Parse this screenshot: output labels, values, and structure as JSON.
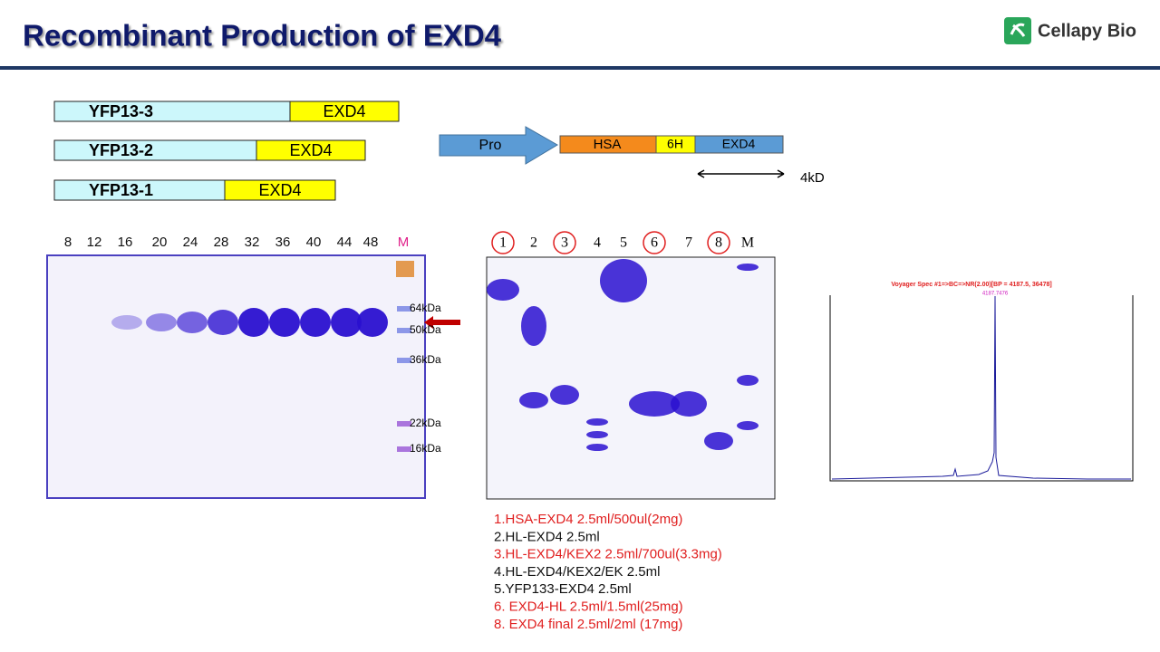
{
  "header": {
    "title": "Recombinant Production of  EXD4",
    "logo": "Cellapy Bio"
  },
  "constructs": [
    {
      "name": "YFP13-3",
      "tag": "EXD4"
    },
    {
      "name": "YFP13-2",
      "tag": "EXD4"
    },
    {
      "name": "YFP13-1",
      "tag": "EXD4"
    }
  ],
  "diagram": {
    "promoter": "Pro",
    "segments": [
      "HSA",
      "6H",
      "EXD4"
    ],
    "size": "4kD"
  },
  "gel1": {
    "lanes": [
      "8",
      "12",
      "16",
      "20",
      "24",
      "28",
      "32",
      "36",
      "40",
      "44",
      "48",
      "M"
    ],
    "markers": [
      "64kDa",
      "50kDa",
      "36kDa",
      "22kDa",
      "16kDa"
    ]
  },
  "gel2": {
    "lanes": [
      "1",
      "2",
      "3",
      "4",
      "5",
      "6",
      "7",
      "8",
      "M"
    ]
  },
  "legend": [
    {
      "text": "1.HSA-EXD4  2.5ml/500ul(2mg)",
      "color": "#e02020"
    },
    {
      "text": "2.HL-EXD4  2.5ml",
      "color": "#111111"
    },
    {
      "text": "3.HL-EXD4/KEX2  2.5ml/700ul(3.3mg)",
      "color": "#e02020"
    },
    {
      "text": "4.HL-EXD4/KEX2/EK  2.5ml",
      "color": "#111111"
    },
    {
      "text": "5.YFP133-EXD4  2.5ml",
      "color": "#111111"
    },
    {
      "text": "6. EXD4-HL  2.5ml/1.5ml(25mg)",
      "color": "#e02020"
    },
    {
      "text": "8. EXD4 final  2.5ml/2ml (17mg)",
      "color": "#e02020"
    }
  ],
  "spectrum": {
    "title": "Voyager Spec #1=>BC=>NR(2.00)[BP = 4187.5, 36478]",
    "peak_label": "4187.7476"
  }
}
